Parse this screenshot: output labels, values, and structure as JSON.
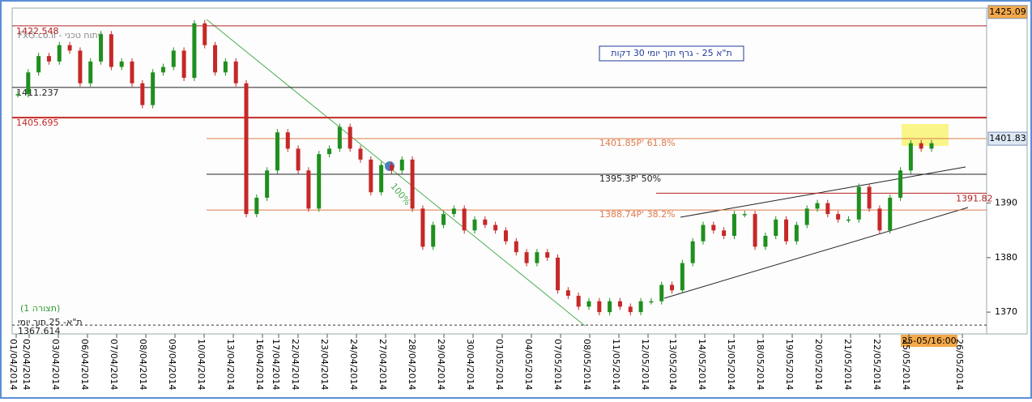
{
  "chart_data": {
    "type": "candlestick",
    "title": "ת\"א 25 - גרף תוך יומי 30 דקות",
    "watermark": "FxG.co.il - ניתוח טכני",
    "pattern_label": "(תצורה 1)",
    "instrument_label": "ת\"א- 25 תוך יומי",
    "trend_label": "100%",
    "cursor_label": "25-05/16:00",
    "x": [
      "01/04/2014",
      "02/04/2014",
      "03/04/2014",
      "06/04/2014",
      "07/04/2014",
      "08/04/2014",
      "09/04/2014",
      "10/04/2014",
      "13/04/2014",
      "16/04/2014",
      "17/04/2014",
      "22/04/2014",
      "23/04/2014",
      "24/04/2014",
      "27/04/2014",
      "28/04/2014",
      "29/04/2014",
      "30/04/2014",
      "01/05/2014",
      "04/05/2014",
      "07/05/2014",
      "08/05/2014",
      "11/05/2014",
      "12/05/2014",
      "13/05/2014",
      "14/05/2014",
      "15/05/2014",
      "18/05/2014",
      "19/05/2014",
      "20/05/2014",
      "21/05/2014",
      "22/05/2014",
      "25/05/2014",
      "26/05/2014"
    ],
    "closes": [
      1410,
      1414,
      1417,
      1416,
      1419,
      1418,
      1412,
      1416,
      1421,
      1415,
      1416,
      1412,
      1408,
      1414,
      1415,
      1418,
      1413,
      1423,
      1419,
      1414,
      1416,
      1412,
      1388,
      1391,
      1396,
      1403,
      1400,
      1396,
      1389,
      1399,
      1400,
      1404,
      1400,
      1398,
      1392,
      1397,
      1396,
      1398,
      1389,
      1382,
      1386,
      1388,
      1389,
      1385,
      1387,
      1386,
      1385,
      1383,
      1381,
      1379,
      1381,
      1380,
      1374,
      1373,
      1371,
      1372,
      1370,
      1372,
      1371,
      1370,
      1372,
      1372,
      1375,
      1374,
      1379,
      1383,
      1386,
      1385,
      1384,
      1388,
      1388,
      1382,
      1384,
      1387,
      1383,
      1386,
      1389,
      1390,
      1388,
      1387,
      1387,
      1393,
      1389,
      1385,
      1391,
      1396,
      1401,
      1400,
      1401
    ],
    "up_color": "#1f8f1f",
    "down_color": "#c62828",
    "ylim": [
      1366,
      1425.5
    ],
    "yticks": [
      1370,
      1380,
      1390
    ],
    "levels": [
      {
        "value": 1422.548,
        "color": "#b22222"
      },
      {
        "value": 1411.237,
        "color": "#222222"
      },
      {
        "value": 1405.695,
        "color": "#c62828"
      },
      {
        "value": 1401.85,
        "color": "#e07a4a",
        "label": "1401.85P' 61.8%"
      },
      {
        "value": 1395.3,
        "color": "#222222",
        "label": "1395.3P' 50%"
      },
      {
        "value": 1388.74,
        "color": "#e07a4a",
        "label": "1388.74P' 38.2%"
      },
      {
        "value": 1391.82,
        "color": "#b22222"
      },
      {
        "value": 1367.614,
        "color": "#333333"
      }
    ],
    "price_markers": [
      1425.09,
      1401.83
    ]
  }
}
